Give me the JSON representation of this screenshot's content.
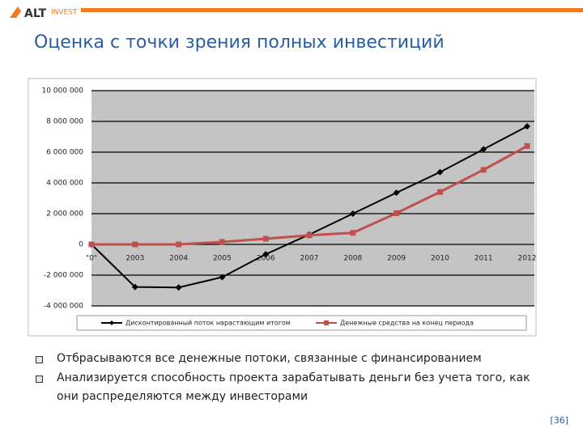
{
  "header": {
    "logo_alt": "ALT",
    "logo_invest": "INVEST",
    "title": "Оценка с точки зрения полных инвестиций"
  },
  "chart_data": {
    "type": "line",
    "categories": [
      "\"0\"",
      "2003",
      "2004",
      "2005",
      "2006",
      "2007",
      "2008",
      "2009",
      "2010",
      "2011",
      "2012"
    ],
    "series": [
      {
        "name": "Дисконтированный поток нарастающим итогом",
        "color": "#000000",
        "marker": "diamond",
        "values": [
          0,
          -2770000,
          -2800000,
          -2130000,
          -640000,
          640000,
          2000000,
          3360000,
          4700000,
          6190000,
          7680000
        ]
      },
      {
        "name": "Денежные средства на конец периода",
        "color": "#c0504d",
        "marker": "square",
        "values": [
          0,
          0,
          0,
          160000,
          370000,
          590000,
          750000,
          2030000,
          3410000,
          4850000,
          6400000
        ]
      }
    ],
    "ylim": [
      -4000000,
      10000000
    ],
    "yticks": [
      {
        "value": -4000000,
        "label": "-4 000 000"
      },
      {
        "value": -2000000,
        "label": "-2 000 000"
      },
      0,
      {
        "value": 2000000,
        "label": "2 000 000"
      },
      {
        "value": 4000000,
        "label": "4 000 000"
      },
      {
        "value": 6000000,
        "label": "6 000 000"
      },
      {
        "value": 8000000,
        "label": "8 000 000"
      },
      {
        "value": 10000000,
        "label": "10 000 000"
      }
    ],
    "grid": true,
    "legend": "bottom"
  },
  "bullets": [
    "Отбрасываются все денежные потоки, связанные с финансированием",
    "Анализируется способность проекта зарабатывать деньги без учета того, как они распределяются между инвесторами"
  ],
  "page_number": "[36]"
}
